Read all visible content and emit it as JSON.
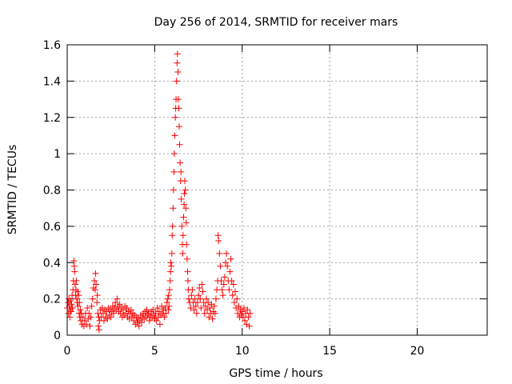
{
  "chart_data": {
    "type": "scatter",
    "title": "Day 256 of 2014, SRMTID for receiver mars",
    "xlabel": "GPS time / hours",
    "ylabel": "SRMTID / TECUs",
    "xlim": [
      0,
      24
    ],
    "ylim": [
      0,
      1.6
    ],
    "x_ticks": [
      0,
      5,
      10,
      15,
      20
    ],
    "x_tick_labels": [
      "0",
      "5",
      "10",
      "15",
      "20"
    ],
    "y_ticks": [
      0,
      0.2,
      0.4,
      0.6,
      0.8,
      1,
      1.2,
      1.4,
      1.6
    ],
    "y_tick_labels": [
      "0",
      "0.2",
      "0.4",
      "0.6",
      "0.8",
      "1",
      "1.2",
      "1.4",
      "1.6"
    ],
    "grid": true,
    "marker": "+",
    "marker_color": "#ff0000",
    "series": [
      {
        "name": "mars",
        "points": [
          [
            0.0,
            0.15
          ],
          [
            0.05,
            0.18
          ],
          [
            0.08,
            0.12
          ],
          [
            0.1,
            0.2
          ],
          [
            0.12,
            0.16
          ],
          [
            0.15,
            0.1
          ],
          [
            0.18,
            0.14
          ],
          [
            0.2,
            0.19
          ],
          [
            0.22,
            0.13
          ],
          [
            0.25,
            0.17
          ],
          [
            0.28,
            0.22
          ],
          [
            0.3,
            0.15
          ],
          [
            0.33,
            0.25
          ],
          [
            0.35,
            0.3
          ],
          [
            0.38,
            0.41
          ],
          [
            0.4,
            0.38
          ],
          [
            0.42,
            0.35
          ],
          [
            0.45,
            0.28
          ],
          [
            0.48,
            0.22
          ],
          [
            0.5,
            0.25
          ],
          [
            0.52,
            0.3
          ],
          [
            0.55,
            0.2
          ],
          [
            0.58,
            0.18
          ],
          [
            0.6,
            0.24
          ],
          [
            0.62,
            0.16
          ],
          [
            0.65,
            0.22
          ],
          [
            0.68,
            0.12
          ],
          [
            0.7,
            0.18
          ],
          [
            0.72,
            0.1
          ],
          [
            0.75,
            0.14
          ],
          [
            0.78,
            0.08
          ],
          [
            0.8,
            0.12
          ],
          [
            0.85,
            0.06
          ],
          [
            0.9,
            0.1
          ],
          [
            0.95,
            0.05
          ],
          [
            1.0,
            0.08
          ],
          [
            1.05,
            0.12
          ],
          [
            1.1,
            0.06
          ],
          [
            1.15,
            0.15
          ],
          [
            1.2,
            0.09
          ],
          [
            1.25,
            0.12
          ],
          [
            1.3,
            0.05
          ],
          [
            1.35,
            0.1
          ],
          [
            1.4,
            0.16
          ],
          [
            1.45,
            0.2
          ],
          [
            1.5,
            0.26
          ],
          [
            1.55,
            0.3
          ],
          [
            1.6,
            0.25
          ],
          [
            1.62,
            0.34
          ],
          [
            1.65,
            0.28
          ],
          [
            1.7,
            0.18
          ],
          [
            1.72,
            0.22
          ],
          [
            1.75,
            0.12
          ],
          [
            1.78,
            0.05
          ],
          [
            1.8,
            0.1
          ],
          [
            1.82,
            0.03
          ],
          [
            1.85,
            0.08
          ],
          [
            1.9,
            0.14
          ],
          [
            1.95,
            0.1
          ],
          [
            2.0,
            0.15
          ],
          [
            2.05,
            0.12
          ],
          [
            2.1,
            0.08
          ],
          [
            2.15,
            0.14
          ],
          [
            2.2,
            0.1
          ],
          [
            2.25,
            0.13
          ],
          [
            2.3,
            0.09
          ],
          [
            2.35,
            0.15
          ],
          [
            2.4,
            0.11
          ],
          [
            2.45,
            0.14
          ],
          [
            2.5,
            0.1
          ],
          [
            2.55,
            0.13
          ],
          [
            2.6,
            0.16
          ],
          [
            2.65,
            0.12
          ],
          [
            2.7,
            0.15
          ],
          [
            2.75,
            0.18
          ],
          [
            2.8,
            0.14
          ],
          [
            2.85,
            0.2
          ],
          [
            2.9,
            0.16
          ],
          [
            2.95,
            0.13
          ],
          [
            3.0,
            0.17
          ],
          [
            3.05,
            0.12
          ],
          [
            3.1,
            0.15
          ],
          [
            3.15,
            0.1
          ],
          [
            3.2,
            0.14
          ],
          [
            3.25,
            0.11
          ],
          [
            3.3,
            0.16
          ],
          [
            3.35,
            0.12
          ],
          [
            3.4,
            0.15
          ],
          [
            3.45,
            0.1
          ],
          [
            3.5,
            0.13
          ],
          [
            3.55,
            0.09
          ],
          [
            3.6,
            0.12
          ],
          [
            3.65,
            0.14
          ],
          [
            3.7,
            0.1
          ],
          [
            3.75,
            0.12
          ],
          [
            3.8,
            0.08
          ],
          [
            3.85,
            0.11
          ],
          [
            3.9,
            0.06
          ],
          [
            3.95,
            0.1
          ],
          [
            4.0,
            0.07
          ],
          [
            4.05,
            0.09
          ],
          [
            4.1,
            0.05
          ],
          [
            4.15,
            0.08
          ],
          [
            4.2,
            0.11
          ],
          [
            4.25,
            0.07
          ],
          [
            4.3,
            0.1
          ],
          [
            4.35,
            0.12
          ],
          [
            4.4,
            0.09
          ],
          [
            4.45,
            0.13
          ],
          [
            4.5,
            0.1
          ],
          [
            4.55,
            0.14
          ],
          [
            4.6,
            0.11
          ],
          [
            4.65,
            0.12
          ],
          [
            4.7,
            0.08
          ],
          [
            4.75,
            0.1
          ],
          [
            4.8,
            0.13
          ],
          [
            4.85,
            0.1
          ],
          [
            4.9,
            0.14
          ],
          [
            4.95,
            0.11
          ],
          [
            5.0,
            0.09
          ],
          [
            5.05,
            0.12
          ],
          [
            5.1,
            0.08
          ],
          [
            5.15,
            0.15
          ],
          [
            5.2,
            0.1
          ],
          [
            5.25,
            0.13
          ],
          [
            5.3,
            0.06
          ],
          [
            5.35,
            0.11
          ],
          [
            5.4,
            0.16
          ],
          [
            5.45,
            0.12
          ],
          [
            5.5,
            0.14
          ],
          [
            5.55,
            0.1
          ],
          [
            5.6,
            0.15
          ],
          [
            5.65,
            0.12
          ],
          [
            5.7,
            0.18
          ],
          [
            5.75,
            0.2
          ],
          [
            5.78,
            0.14
          ],
          [
            5.8,
            0.22
          ],
          [
            5.82,
            0.16
          ],
          [
            5.85,
            0.25
          ],
          [
            5.88,
            0.3
          ],
          [
            5.9,
            0.35
          ],
          [
            5.92,
            0.4
          ],
          [
            5.95,
            0.38
          ],
          [
            5.98,
            0.45
          ],
          [
            6.0,
            0.55
          ],
          [
            6.02,
            0.6
          ],
          [
            6.05,
            0.7
          ],
          [
            6.07,
            0.8
          ],
          [
            6.1,
            0.9
          ],
          [
            6.12,
            1.0
          ],
          [
            6.15,
            1.1
          ],
          [
            6.18,
            1.2
          ],
          [
            6.2,
            1.25
          ],
          [
            6.22,
            1.3
          ],
          [
            6.25,
            1.4
          ],
          [
            6.28,
            1.5
          ],
          [
            6.3,
            1.55
          ],
          [
            6.33,
            1.45
          ],
          [
            6.35,
            1.3
          ],
          [
            6.38,
            1.25
          ],
          [
            6.4,
            1.15
          ],
          [
            6.42,
            1.05
          ],
          [
            6.45,
            0.95
          ],
          [
            6.48,
            0.85
          ],
          [
            6.5,
            0.9
          ],
          [
            6.52,
            0.75
          ],
          [
            6.55,
            0.6
          ],
          [
            6.58,
            0.5
          ],
          [
            6.6,
            0.45
          ],
          [
            6.62,
            0.55
          ],
          [
            6.65,
            0.65
          ],
          [
            6.68,
            0.72
          ],
          [
            6.7,
            0.78
          ],
          [
            6.72,
            0.85
          ],
          [
            6.75,
            0.8
          ],
          [
            6.78,
            0.7
          ],
          [
            6.8,
            0.62
          ],
          [
            6.82,
            0.5
          ],
          [
            6.85,
            0.42
          ],
          [
            6.88,
            0.35
          ],
          [
            6.9,
            0.3
          ],
          [
            6.92,
            0.25
          ],
          [
            6.95,
            0.2
          ],
          [
            7.0,
            0.18
          ],
          [
            7.05,
            0.15
          ],
          [
            7.1,
            0.22
          ],
          [
            7.15,
            0.25
          ],
          [
            7.2,
            0.18
          ],
          [
            7.25,
            0.14
          ],
          [
            7.3,
            0.2
          ],
          [
            7.35,
            0.16
          ],
          [
            7.4,
            0.12
          ],
          [
            7.45,
            0.18
          ],
          [
            7.5,
            0.22
          ],
          [
            7.55,
            0.26
          ],
          [
            7.6,
            0.2
          ],
          [
            7.65,
            0.15
          ],
          [
            7.7,
            0.28
          ],
          [
            7.75,
            0.24
          ],
          [
            7.8,
            0.18
          ],
          [
            7.85,
            0.12
          ],
          [
            7.9,
            0.16
          ],
          [
            7.95,
            0.2
          ],
          [
            8.0,
            0.14
          ],
          [
            8.05,
            0.18
          ],
          [
            8.1,
            0.1
          ],
          [
            8.15,
            0.15
          ],
          [
            8.2,
            0.12
          ],
          [
            8.25,
            0.17
          ],
          [
            8.3,
            0.09
          ],
          [
            8.35,
            0.13
          ],
          [
            8.4,
            0.16
          ],
          [
            8.45,
            0.12
          ],
          [
            8.5,
            0.2
          ],
          [
            8.55,
            0.25
          ],
          [
            8.6,
            0.3
          ],
          [
            8.62,
            0.55
          ],
          [
            8.65,
            0.52
          ],
          [
            8.7,
            0.45
          ],
          [
            8.75,
            0.38
          ],
          [
            8.8,
            0.3
          ],
          [
            8.85,
            0.25
          ],
          [
            8.9,
            0.22
          ],
          [
            8.95,
            0.28
          ],
          [
            9.0,
            0.32
          ],
          [
            9.05,
            0.4
          ],
          [
            9.1,
            0.45
          ],
          [
            9.15,
            0.38
          ],
          [
            9.2,
            0.3
          ],
          [
            9.25,
            0.25
          ],
          [
            9.3,
            0.35
          ],
          [
            9.35,
            0.42
          ],
          [
            9.4,
            0.3
          ],
          [
            9.45,
            0.22
          ],
          [
            9.5,
            0.28
          ],
          [
            9.55,
            0.18
          ],
          [
            9.6,
            0.24
          ],
          [
            9.65,
            0.15
          ],
          [
            9.7,
            0.2
          ],
          [
            9.75,
            0.12
          ],
          [
            9.8,
            0.16
          ],
          [
            9.85,
            0.1
          ],
          [
            9.9,
            0.14
          ],
          [
            9.95,
            0.11
          ],
          [
            10.0,
            0.13
          ],
          [
            10.05,
            0.1
          ],
          [
            10.1,
            0.15
          ],
          [
            10.15,
            0.08
          ],
          [
            10.2,
            0.12
          ],
          [
            10.25,
            0.06
          ],
          [
            10.3,
            0.14
          ],
          [
            10.35,
            0.1
          ],
          [
            10.4,
            0.05
          ],
          [
            10.45,
            0.12
          ]
        ]
      }
    ]
  }
}
